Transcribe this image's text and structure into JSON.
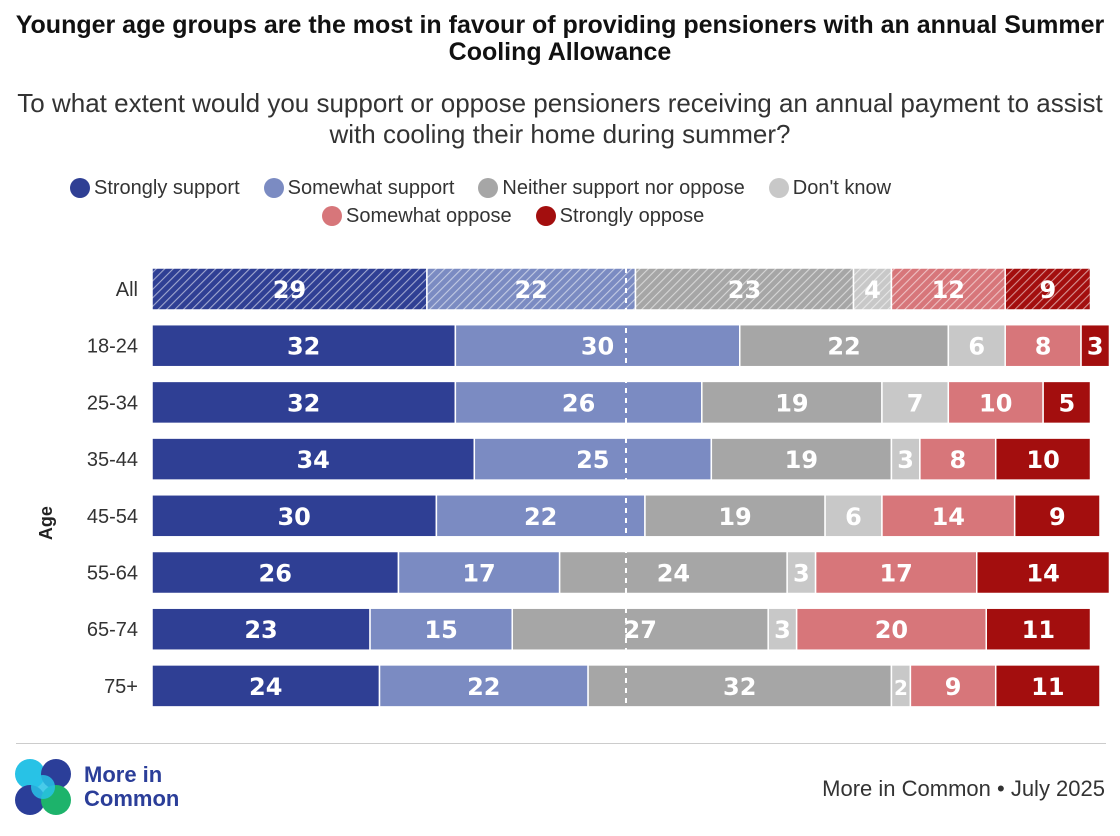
{
  "title": "Younger age groups are the most in favour of providing pensioners with an annual Summer Cooling Allowance",
  "subtitle": "To what extent would you support or oppose pensioners receiving an annual payment to assist with cooling their home during summer?",
  "source": "More in Common • July 2025",
  "logo": {
    "line1": "More in",
    "line2": "Common"
  },
  "colors": [
    "#2f3f94",
    "#7b8bc2",
    "#a6a6a6",
    "#c8c8c8",
    "#d7767a",
    "#a30e0e"
  ],
  "chart_data": {
    "type": "bar",
    "orientation": "horizontal",
    "stacked": true,
    "title": "Younger age groups are the most in favour of providing pensioners with an annual Summer Cooling Allowance",
    "subtitle": "To what extent would you support or oppose pensioners receiving an annual payment to assist with cooling their home during summer?",
    "ylabel": "Age",
    "xlim": [
      0,
      100
    ],
    "reference_line": 50,
    "categories": [
      "All",
      "18-24",
      "25-34",
      "35-44",
      "45-54",
      "55-64",
      "65-74",
      "75+"
    ],
    "hatched_categories": [
      "All"
    ],
    "series": [
      {
        "name": "Strongly support",
        "values": [
          29,
          32,
          32,
          34,
          30,
          26,
          23,
          24
        ]
      },
      {
        "name": "Somewhat support",
        "values": [
          22,
          30,
          26,
          25,
          22,
          17,
          15,
          22
        ]
      },
      {
        "name": "Neither support nor oppose",
        "values": [
          23,
          22,
          19,
          19,
          19,
          24,
          27,
          32
        ]
      },
      {
        "name": "Don't know",
        "values": [
          4,
          6,
          7,
          3,
          6,
          3,
          3,
          2
        ]
      },
      {
        "name": "Somewhat oppose",
        "values": [
          12,
          8,
          10,
          8,
          14,
          17,
          20,
          9
        ]
      },
      {
        "name": "Strongly oppose",
        "values": [
          9,
          3,
          5,
          10,
          9,
          14,
          11,
          11
        ]
      }
    ]
  }
}
